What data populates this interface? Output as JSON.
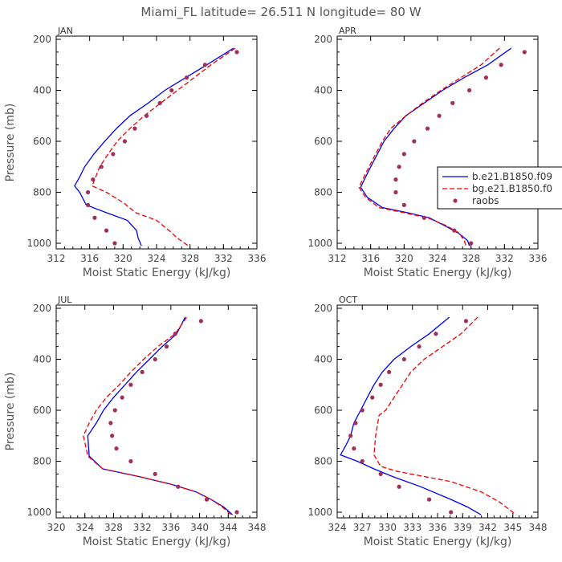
{
  "figure": {
    "title": "Miami_FL   latitude= 26.511 N longitude= 80 W",
    "legend": {
      "placement": "right side of APR panel (clipped)",
      "entries": [
        "b.e21.B1850.f09",
        "bg.e21.B1850.f0",
        "raobs"
      ]
    },
    "colors": {
      "model_b": "#0000ee",
      "model_bg": "#ee0000",
      "raobs": "#a0305a",
      "axes": "#000000"
    }
  },
  "chart_data": [
    {
      "type": "line",
      "panel": "JAN",
      "title": "JAN",
      "xlabel": "Moist Static Energy (kJ/kg)",
      "ylabel": "Pressure (mb)",
      "xlim": [
        312,
        336
      ],
      "xticks": [
        "312",
        "316",
        "320",
        "324",
        "328",
        "332",
        "336"
      ],
      "ylim": [
        1000,
        200
      ],
      "yticks": [
        "200",
        "400",
        "600",
        "800",
        "1000"
      ],
      "series": [
        {
          "name": "b.e21.B1850.f09",
          "style": "solid",
          "color": "#0000ee",
          "points": [
            [
              333.2,
              235
            ],
            [
              330,
              300
            ],
            [
              327.5,
              350
            ],
            [
              325,
              400
            ],
            [
              323,
              450
            ],
            [
              320.8,
              500
            ],
            [
              319.2,
              550
            ],
            [
              317.8,
              600
            ],
            [
              316.5,
              650
            ],
            [
              315.4,
              700
            ],
            [
              314.8,
              740
            ],
            [
              314.2,
              775
            ],
            [
              314.8,
              800
            ],
            [
              315.6,
              850
            ],
            [
              318,
              880
            ],
            [
              320.5,
              910
            ],
            [
              321.6,
              950
            ],
            [
              321.8,
              980
            ],
            [
              322.2,
              1010
            ]
          ]
        },
        {
          "name": "bg.e21.B1850.f0",
          "style": "dashed",
          "color": "#ee0000",
          "points": [
            [
              333.4,
              235
            ],
            [
              330.5,
              300
            ],
            [
              328.5,
              350
            ],
            [
              326.5,
              400
            ],
            [
              324.5,
              450
            ],
            [
              322.5,
              500
            ],
            [
              320.8,
              550
            ],
            [
              319.3,
              600
            ],
            [
              318.2,
              650
            ],
            [
              317.2,
              700
            ],
            [
              316.6,
              750
            ],
            [
              316.3,
              775
            ],
            [
              318,
              800
            ],
            [
              320,
              840
            ],
            [
              321.5,
              880
            ],
            [
              324,
              910
            ],
            [
              325.5,
              950
            ],
            [
              326.5,
              980
            ],
            [
              327.8,
              1010
            ]
          ]
        },
        {
          "name": "raobs",
          "style": "markers",
          "color": "#a0305a",
          "points": [
            [
              333.6,
              250
            ],
            [
              329.8,
              300
            ],
            [
              327.6,
              350
            ],
            [
              325.8,
              400
            ],
            [
              324.4,
              450
            ],
            [
              322.8,
              500
            ],
            [
              321.4,
              550
            ],
            [
              320.2,
              600
            ],
            [
              318.8,
              650
            ],
            [
              317.4,
              700
            ],
            [
              316.4,
              750
            ],
            [
              315.8,
              800
            ],
            [
              315.8,
              850
            ],
            [
              316.6,
              900
            ],
            [
              318,
              950
            ],
            [
              319,
              1000
            ]
          ]
        }
      ]
    },
    {
      "type": "line",
      "panel": "APR",
      "title": "APR",
      "xlabel": "Moist Static Energy (kJ/kg)",
      "ylabel": "",
      "xlim": [
        312,
        336
      ],
      "xticks": [
        "312",
        "316",
        "320",
        "324",
        "328",
        "332",
        "336"
      ],
      "ylim": [
        1000,
        200
      ],
      "yticks": [
        "200",
        "400",
        "600",
        "800",
        "1000"
      ],
      "series": [
        {
          "name": "b.e21.B1850.f09",
          "style": "solid",
          "color": "#0000ee",
          "points": [
            [
              332.8,
              235
            ],
            [
              330,
              300
            ],
            [
              327.2,
              350
            ],
            [
              324.6,
              400
            ],
            [
              322.4,
              450
            ],
            [
              320.2,
              500
            ],
            [
              318.8,
              550
            ],
            [
              317.6,
              600
            ],
            [
              316.8,
              650
            ],
            [
              316,
              700
            ],
            [
              315.4,
              740
            ],
            [
              314.8,
              780
            ],
            [
              315.6,
              820
            ],
            [
              317.4,
              860
            ],
            [
              320.4,
              880
            ],
            [
              323,
              900
            ],
            [
              324.8,
              930
            ],
            [
              326.5,
              960
            ],
            [
              327.6,
              990
            ],
            [
              327.8,
              1010
            ]
          ]
        },
        {
          "name": "bg.e21.B1850.f0",
          "style": "dashed",
          "color": "#ee0000",
          "points": [
            [
              331.4,
              235
            ],
            [
              329.2,
              300
            ],
            [
              326.8,
              350
            ],
            [
              324.4,
              400
            ],
            [
              322.2,
              450
            ],
            [
              320.2,
              500
            ],
            [
              318.4,
              550
            ],
            [
              317.4,
              600
            ],
            [
              316.6,
              650
            ],
            [
              315.8,
              700
            ],
            [
              315.2,
              740
            ],
            [
              314.6,
              780
            ],
            [
              315.4,
              820
            ],
            [
              317,
              860
            ],
            [
              320,
              880
            ],
            [
              322.8,
              900
            ],
            [
              325,
              930
            ],
            [
              326.6,
              960
            ],
            [
              327.2,
              990
            ],
            [
              327.4,
              1010
            ]
          ]
        },
        {
          "name": "raobs",
          "style": "markers",
          "color": "#a0305a",
          "points": [
            [
              334.4,
              250
            ],
            [
              331.6,
              300
            ],
            [
              329.8,
              350
            ],
            [
              327.8,
              400
            ],
            [
              325.8,
              450
            ],
            [
              324.2,
              500
            ],
            [
              322.8,
              550
            ],
            [
              321.2,
              600
            ],
            [
              320,
              650
            ],
            [
              319.4,
              700
            ],
            [
              319,
              750
            ],
            [
              319,
              800
            ],
            [
              320,
              850
            ],
            [
              322.4,
              900
            ],
            [
              326,
              950
            ],
            [
              328,
              1000
            ]
          ]
        }
      ]
    },
    {
      "type": "line",
      "panel": "JUL",
      "title": "JUL",
      "xlabel": "Moist Static Energy (kJ/kg)",
      "ylabel": "Pressure (mb)",
      "xlim": [
        320,
        348
      ],
      "xticks": [
        "320",
        "324",
        "328",
        "332",
        "336",
        "340",
        "344",
        "348"
      ],
      "ylim": [
        1000,
        200
      ],
      "yticks": [
        "200",
        "400",
        "600",
        "800",
        "1000"
      ],
      "series": [
        {
          "name": "b.e21.B1850.f09",
          "style": "solid",
          "color": "#0000ee",
          "points": [
            [
              338,
              235
            ],
            [
              336.8,
              300
            ],
            [
              334.8,
              350
            ],
            [
              333,
              400
            ],
            [
              331.2,
              450
            ],
            [
              329.6,
              500
            ],
            [
              328,
              550
            ],
            [
              326.6,
              600
            ],
            [
              325.6,
              650
            ],
            [
              324.4,
              700
            ],
            [
              324.6,
              780
            ],
            [
              326.5,
              830
            ],
            [
              331.5,
              860
            ],
            [
              336,
              890
            ],
            [
              339.5,
              920
            ],
            [
              341.6,
              950
            ],
            [
              343.4,
              980
            ],
            [
              344.2,
              1000
            ],
            [
              344.6,
              1010
            ]
          ]
        },
        {
          "name": "bg.e21.B1850.f0",
          "style": "dashed",
          "color": "#ee0000",
          "points": [
            [
              338.2,
              235
            ],
            [
              336.6,
              300
            ],
            [
              334.2,
              350
            ],
            [
              332.2,
              400
            ],
            [
              330.4,
              450
            ],
            [
              328.8,
              500
            ],
            [
              327,
              550
            ],
            [
              325.6,
              600
            ],
            [
              324.6,
              650
            ],
            [
              323.8,
              700
            ],
            [
              324.4,
              780
            ],
            [
              326.5,
              830
            ],
            [
              331.5,
              860
            ],
            [
              336,
              890
            ],
            [
              339.5,
              920
            ],
            [
              341.6,
              950
            ],
            [
              343.2,
              980
            ],
            [
              344,
              1000
            ],
            [
              344.4,
              1010
            ]
          ]
        },
        {
          "name": "raobs",
          "style": "markers",
          "color": "#a0305a",
          "points": [
            [
              340.2,
              250
            ],
            [
              336.6,
              300
            ],
            [
              335.4,
              350
            ],
            [
              333.8,
              400
            ],
            [
              332,
              450
            ],
            [
              330.4,
              500
            ],
            [
              329.2,
              550
            ],
            [
              328.2,
              600
            ],
            [
              327.6,
              650
            ],
            [
              327.8,
              700
            ],
            [
              328.4,
              750
            ],
            [
              330.4,
              800
            ],
            [
              333.8,
              850
            ],
            [
              337,
              900
            ],
            [
              341,
              950
            ],
            [
              345.2,
              1000
            ]
          ]
        }
      ]
    },
    {
      "type": "line",
      "panel": "OCT",
      "title": "OCT",
      "xlabel": "Moist Static Energy (kJ/kg)",
      "ylabel": "",
      "xlim": [
        324,
        348
      ],
      "xticks": [
        "324",
        "327",
        "330",
        "333",
        "336",
        "339",
        "342",
        "345",
        "348"
      ],
      "ylim": [
        1000,
        200
      ],
      "yticks": [
        "200",
        "400",
        "600",
        "800",
        "1000"
      ],
      "series": [
        {
          "name": "b.e21.B1850.f09",
          "style": "solid",
          "color": "#0000ee",
          "points": [
            [
              337.4,
              235
            ],
            [
              335,
              300
            ],
            [
              332.8,
              350
            ],
            [
              330.8,
              400
            ],
            [
              329.4,
              450
            ],
            [
              328.4,
              500
            ],
            [
              327.6,
              550
            ],
            [
              326.8,
              600
            ],
            [
              326,
              650
            ],
            [
              325.6,
              700
            ],
            [
              325,
              740
            ],
            [
              324.4,
              775
            ],
            [
              326.4,
              800
            ],
            [
              328.4,
              830
            ],
            [
              330.6,
              860
            ],
            [
              334,
              900
            ],
            [
              337.6,
              950
            ],
            [
              339.6,
              980
            ],
            [
              341.2,
              1010
            ]
          ]
        },
        {
          "name": "bg.e21.B1850.f0",
          "style": "dashed",
          "color": "#ee0000",
          "points": [
            [
              340.8,
              235
            ],
            [
              338.8,
              300
            ],
            [
              336.6,
              350
            ],
            [
              334.4,
              400
            ],
            [
              332.8,
              450
            ],
            [
              331.8,
              500
            ],
            [
              330.8,
              550
            ],
            [
              329.8,
              600
            ],
            [
              329,
              620
            ],
            [
              328.6,
              700
            ],
            [
              328.4,
              775
            ],
            [
              329.2,
              820
            ],
            [
              331.2,
              840
            ],
            [
              334.4,
              860
            ],
            [
              337.6,
              880
            ],
            [
              341.2,
              920
            ],
            [
              343.4,
              960
            ],
            [
              344.6,
              990
            ],
            [
              345.4,
              1010
            ]
          ]
        },
        {
          "name": "raobs",
          "style": "markers",
          "color": "#a0305a",
          "points": [
            [
              339.4,
              250
            ],
            [
              335.8,
              300
            ],
            [
              333.8,
              350
            ],
            [
              332,
              400
            ],
            [
              330.2,
              450
            ],
            [
              329.2,
              500
            ],
            [
              328.2,
              550
            ],
            [
              327,
              600
            ],
            [
              326.2,
              650
            ],
            [
              325.6,
              700
            ],
            [
              326,
              750
            ],
            [
              327,
              800
            ],
            [
              329.2,
              850
            ],
            [
              331.4,
              900
            ],
            [
              335,
              950
            ],
            [
              337.6,
              1000
            ]
          ]
        }
      ]
    }
  ]
}
